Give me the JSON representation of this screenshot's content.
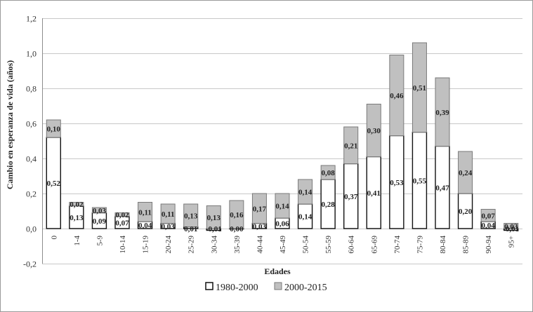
{
  "chart_data": {
    "type": "bar",
    "stacked": true,
    "xlabel": "Edades",
    "ylabel": "Cambio en esperanza de vida (años)",
    "ylim": [
      -0.2,
      1.2
    ],
    "yticks": [
      "-0,2",
      "0,0",
      "0,2",
      "0,4",
      "0,6",
      "0,8",
      "1,0",
      "1,2"
    ],
    "ytick_values": [
      -0.2,
      0.0,
      0.2,
      0.4,
      0.6,
      0.8,
      1.0,
      1.2
    ],
    "grid": true,
    "legend_position": "bottom",
    "categories": [
      "0",
      "1-4",
      "5-9",
      "10-14",
      "15-19",
      "20-24",
      "25-29",
      "30-34",
      "35-39",
      "40-44",
      "45-49",
      "50-54",
      "55-59",
      "60-64",
      "65-69",
      "70-74",
      "75-79",
      "80-84",
      "85-89",
      "90-94",
      "95+"
    ],
    "series": [
      {
        "name": "1980-2000",
        "color": "#ffffff",
        "values": [
          0.52,
          0.13,
          0.09,
          0.07,
          0.04,
          0.03,
          0.01,
          -0.01,
          0.0,
          0.03,
          0.06,
          0.14,
          0.28,
          0.37,
          0.41,
          0.53,
          0.55,
          0.47,
          0.2,
          0.04,
          -0.01
        ],
        "labels": [
          "0,52",
          "0,13",
          "0,09",
          "0,07",
          "0,04",
          "0,03",
          "0,01",
          "-0,01",
          "0,00",
          "0,03",
          "0,06",
          "0,14",
          "0,28",
          "0,37",
          "0,41",
          "0,53",
          "0,55",
          "0,47",
          "0,20",
          "0,04",
          "-0,01"
        ]
      },
      {
        "name": "2000-2015",
        "color": "#c0c0c0",
        "values": [
          0.1,
          0.02,
          0.03,
          0.02,
          0.11,
          0.11,
          0.13,
          0.13,
          0.16,
          0.17,
          0.14,
          0.14,
          0.08,
          0.21,
          0.3,
          0.46,
          0.51,
          0.39,
          0.24,
          0.07,
          0.03
        ],
        "labels": [
          "0,10",
          "0,02",
          "0,03",
          "0,02",
          "0,11",
          "0,11",
          "0,13",
          "0,13",
          "0,16",
          "0,17",
          "0,14",
          "0,14",
          "0,08",
          "0,21",
          "0,30",
          "0,46",
          "0,51",
          "0,39",
          "0,24",
          "0,07",
          "0,03"
        ]
      }
    ]
  }
}
